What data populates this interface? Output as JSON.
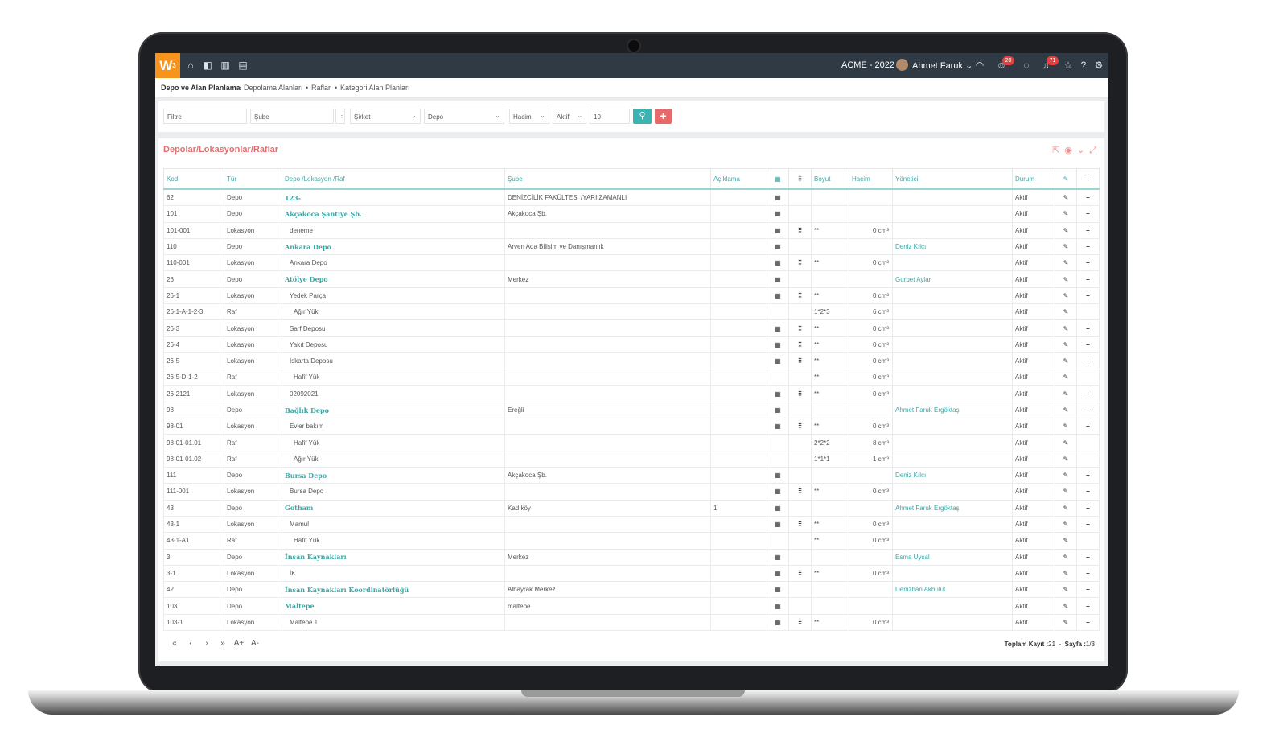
{
  "topbar": {
    "logo": "W",
    "logo_sup": "3",
    "org": "ACME - 2022",
    "user_name": "Ahmet Faruk",
    "smiley_badge": "20",
    "bell_badge": "71"
  },
  "breadcrumb": [
    "Depo ve Alan Planlama",
    "Depolama Alanları",
    "Raflar",
    "Kategori Alan Planları"
  ],
  "filters": {
    "filtre": "Filtre",
    "sube": "Şube",
    "sirket": "Şirket",
    "depo": "Depo",
    "hacim": "Hacim",
    "aktif": "Aktif",
    "page_size": "10"
  },
  "panel": {
    "title": "Depolar/Lokasyonlar/Raflar"
  },
  "table": {
    "headers": [
      "Kod",
      "Tür",
      "Depo /Lokasyon /Raf",
      "Şube",
      "Açıklama",
      "",
      "",
      "Boyut",
      "Hacim",
      "Yönetici",
      "Durum",
      "",
      ""
    ],
    "rows": [
      {
        "kod": "62",
        "tur": "Depo",
        "name": "123-",
        "sube": "DENİZCİLİK FAKÜLTESİ /YARI ZAMANLI",
        "aciklama": "",
        "g1": "▦",
        "g2": "",
        "boyut": "",
        "hacim": "",
        "yon": "",
        "durum": "Aktif",
        "add": "+"
      },
      {
        "kod": "101",
        "tur": "Depo",
        "name": "Akçakoca Şantiye Şb.",
        "sube": "Akçakoca Şb.",
        "aciklama": "",
        "g1": "▦",
        "g2": "",
        "boyut": "",
        "hacim": "",
        "yon": "",
        "durum": "Aktif",
        "add": "+"
      },
      {
        "kod": "101-001",
        "tur": "Lokasyon",
        "name": "deneme",
        "sube": "",
        "aciklama": "",
        "g1": "▦",
        "g2": "⠿",
        "boyut": "**",
        "hacim": "0 cm³",
        "yon": "",
        "durum": "Aktif",
        "add": "+"
      },
      {
        "kod": "110",
        "tur": "Depo",
        "name": "Ankara Depo",
        "sube": "Arven Ada Bilişim ve Danışmanlık",
        "aciklama": "",
        "g1": "▦",
        "g2": "",
        "boyut": "",
        "hacim": "",
        "yon": "Deniz Kılcı",
        "durum": "Aktif",
        "add": "+"
      },
      {
        "kod": "110-001",
        "tur": "Lokasyon",
        "name": "Ankara Depo",
        "sube": "",
        "aciklama": "",
        "g1": "▦",
        "g2": "⠿",
        "boyut": "**",
        "hacim": "0 cm³",
        "yon": "",
        "durum": "Aktif",
        "add": "+"
      },
      {
        "kod": "26",
        "tur": "Depo",
        "name": "Atölye Depo",
        "sube": "Merkez",
        "aciklama": "",
        "g1": "▦",
        "g2": "",
        "boyut": "",
        "hacim": "",
        "yon": "Gurbet Aylar",
        "durum": "Aktif",
        "add": "+"
      },
      {
        "kod": "26-1",
        "tur": "Lokasyon",
        "name": "Yedek Parça",
        "sube": "",
        "aciklama": "",
        "g1": "▦",
        "g2": "⠿",
        "boyut": "**",
        "hacim": "0 cm³",
        "yon": "",
        "durum": "Aktif",
        "add": "+"
      },
      {
        "kod": "26-1-A-1-2-3",
        "tur": "Raf",
        "name": "Ağır Yük",
        "sube": "",
        "aciklama": "",
        "g1": "",
        "g2": "",
        "boyut": "1*2*3",
        "hacim": "6 cm³",
        "yon": "",
        "durum": "Aktif",
        "add": ""
      },
      {
        "kod": "26-3",
        "tur": "Lokasyon",
        "name": "Sarf Deposu",
        "sube": "",
        "aciklama": "",
        "g1": "▦",
        "g2": "⠿",
        "boyut": "**",
        "hacim": "0 cm³",
        "yon": "",
        "durum": "Aktif",
        "add": "+"
      },
      {
        "kod": "26-4",
        "tur": "Lokasyon",
        "name": "Yakıt Deposu",
        "sube": "",
        "aciklama": "",
        "g1": "▦",
        "g2": "⠿",
        "boyut": "**",
        "hacim": "0 cm³",
        "yon": "",
        "durum": "Aktif",
        "add": "+"
      },
      {
        "kod": "26-5",
        "tur": "Lokasyon",
        "name": "Iskarta Deposu",
        "sube": "",
        "aciklama": "",
        "g1": "▦",
        "g2": "⠿",
        "boyut": "**",
        "hacim": "0 cm³",
        "yon": "",
        "durum": "Aktif",
        "add": "+"
      },
      {
        "kod": "26-5-D-1-2",
        "tur": "Raf",
        "name": "Hafif Yük",
        "sube": "",
        "aciklama": "",
        "g1": "",
        "g2": "",
        "boyut": "**",
        "hacim": "0 cm³",
        "yon": "",
        "durum": "Aktif",
        "add": ""
      },
      {
        "kod": "26-2121",
        "tur": "Lokasyon",
        "name": "02092021",
        "sube": "",
        "aciklama": "",
        "g1": "▦",
        "g2": "⠿",
        "boyut": "**",
        "hacim": "0 cm³",
        "yon": "",
        "durum": "Aktif",
        "add": "+"
      },
      {
        "kod": "98",
        "tur": "Depo",
        "name": "Bağlık Depo",
        "sube": "Ereğli",
        "aciklama": "",
        "g1": "▦",
        "g2": "",
        "boyut": "",
        "hacim": "",
        "yon": "Ahmet Faruk Ergöktaş",
        "durum": "Aktif",
        "add": "+"
      },
      {
        "kod": "98-01",
        "tur": "Lokasyon",
        "name": "Evler bakım",
        "sube": "",
        "aciklama": "",
        "g1": "▦",
        "g2": "⠿",
        "boyut": "**",
        "hacim": "0 cm³",
        "yon": "",
        "durum": "Aktif",
        "add": "+"
      },
      {
        "kod": "98-01-01.01",
        "tur": "Raf",
        "name": "Hafif Yük",
        "sube": "",
        "aciklama": "",
        "g1": "",
        "g2": "",
        "boyut": "2*2*2",
        "hacim": "8 cm³",
        "yon": "",
        "durum": "Aktif",
        "add": ""
      },
      {
        "kod": "98-01-01.02",
        "tur": "Raf",
        "name": "Ağır Yük",
        "sube": "",
        "aciklama": "",
        "g1": "",
        "g2": "",
        "boyut": "1*1*1",
        "hacim": "1 cm³",
        "yon": "",
        "durum": "Aktif",
        "add": ""
      },
      {
        "kod": "111",
        "tur": "Depo",
        "name": "Bursa Depo",
        "sube": "Akçakoca Şb.",
        "aciklama": "",
        "g1": "▦",
        "g2": "",
        "boyut": "",
        "hacim": "",
        "yon": "Deniz Kılcı",
        "durum": "Aktif",
        "add": "+"
      },
      {
        "kod": "111-001",
        "tur": "Lokasyon",
        "name": "Bursa Depo",
        "sube": "",
        "aciklama": "",
        "g1": "▦",
        "g2": "⠿",
        "boyut": "**",
        "hacim": "0 cm³",
        "yon": "",
        "durum": "Aktif",
        "add": "+"
      },
      {
        "kod": "43",
        "tur": "Depo",
        "name": "Gotham",
        "sube": "Kadıköy",
        "aciklama": "1",
        "g1": "▦",
        "g2": "",
        "boyut": "",
        "hacim": "",
        "yon": "Ahmet Faruk Ergöktaş",
        "durum": "Aktif",
        "add": "+"
      },
      {
        "kod": "43-1",
        "tur": "Lokasyon",
        "name": "Mamul",
        "sube": "",
        "aciklama": "",
        "g1": "▦",
        "g2": "⠿",
        "boyut": "**",
        "hacim": "0 cm³",
        "yon": "",
        "durum": "Aktif",
        "add": "+"
      },
      {
        "kod": "43-1-A1",
        "tur": "Raf",
        "name": "Hafif Yük",
        "sube": "",
        "aciklama": "",
        "g1": "",
        "g2": "",
        "boyut": "**",
        "hacim": "0 cm³",
        "yon": "",
        "durum": "Aktif",
        "add": ""
      },
      {
        "kod": "3",
        "tur": "Depo",
        "name": "İnsan Kaynakları",
        "sube": "Merkez",
        "aciklama": "",
        "g1": "▦",
        "g2": "",
        "boyut": "",
        "hacim": "",
        "yon": "Esma Uysal",
        "durum": "Aktif",
        "add": "+"
      },
      {
        "kod": "3-1",
        "tur": "Lokasyon",
        "name": "İK",
        "sube": "",
        "aciklama": "",
        "g1": "▦",
        "g2": "⠿",
        "boyut": "**",
        "hacim": "0 cm³",
        "yon": "",
        "durum": "Aktif",
        "add": "+"
      },
      {
        "kod": "42",
        "tur": "Depo",
        "name": "İnsan Kaynakları Koordinatörlüğü",
        "sube": "Albayrak Merkez",
        "aciklama": "",
        "g1": "▦",
        "g2": "",
        "boyut": "",
        "hacim": "",
        "yon": "Denizhan Akbulut",
        "durum": "Aktif",
        "add": "+"
      },
      {
        "kod": "103",
        "tur": "Depo",
        "name": "Maltepe",
        "sube": "maltepe",
        "aciklama": "",
        "g1": "▦",
        "g2": "",
        "boyut": "",
        "hacim": "",
        "yon": "",
        "durum": "Aktif",
        "add": "+"
      },
      {
        "kod": "103-1",
        "tur": "Lokasyon",
        "name": "Maltepe 1",
        "sube": "",
        "aciklama": "",
        "g1": "▦",
        "g2": "⠿",
        "boyut": "**",
        "hacim": "0 cm³",
        "yon": "",
        "durum": "Aktif",
        "add": "+"
      }
    ]
  },
  "footer": {
    "nav": [
      "«",
      "‹",
      "›",
      "»",
      "A+",
      "A-"
    ],
    "total_label": "Toplam Kayıt :",
    "total_value": "21",
    "page_label": "Sayfa :",
    "page_value": "1/3"
  },
  "colors": {
    "accent": "#3bb3b0",
    "add": "#e76a6a",
    "logo": "#f7941d",
    "topbar": "#2f3a45"
  }
}
